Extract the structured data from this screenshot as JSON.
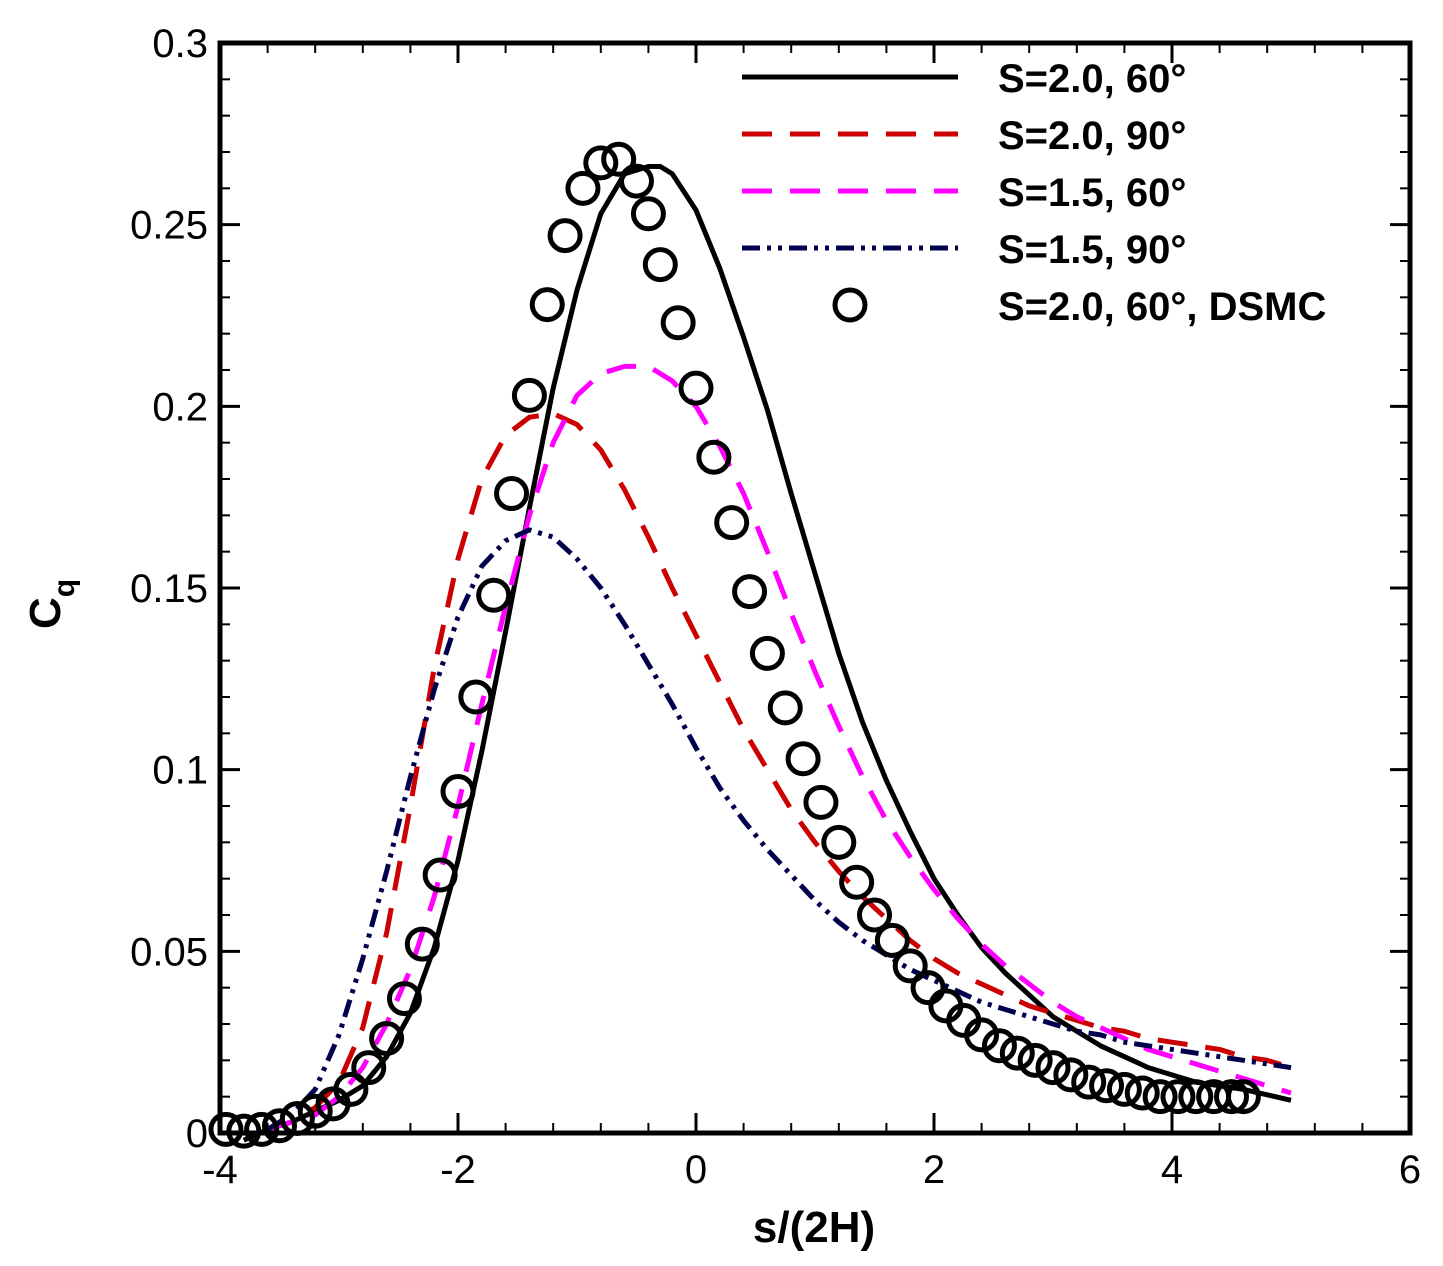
{
  "chart_data": {
    "type": "line",
    "xlabel": "s/(2H)",
    "ylabel": "C",
    "ylabel_sub": "q",
    "xlim": [
      -4,
      6
    ],
    "ylim": [
      0,
      0.3
    ],
    "xticks": [
      -4,
      -2,
      0,
      2,
      4,
      6
    ],
    "yticks": [
      0,
      0.05,
      0.1,
      0.15,
      0.2,
      0.25,
      0.3
    ],
    "xtick_labels": [
      "-4",
      "-2",
      "0",
      "2",
      "4",
      "6"
    ],
    "ytick_labels": [
      "0",
      "0.05",
      "0.1",
      "0.15",
      "0.2",
      "0.25",
      "0.3"
    ],
    "legend_position": "top-right",
    "series": [
      {
        "name": "S=2.0, 60°",
        "style": "solid",
        "color": "#000000",
        "x": [
          -3.8,
          -3.6,
          -3.4,
          -3.2,
          -3.0,
          -2.8,
          -2.6,
          -2.4,
          -2.2,
          -2.0,
          -1.8,
          -1.6,
          -1.4,
          -1.2,
          -1.0,
          -0.8,
          -0.6,
          -0.4,
          -0.3,
          -0.2,
          0.0,
          0.2,
          0.4,
          0.6,
          0.8,
          1.0,
          1.2,
          1.4,
          1.6,
          1.8,
          2.0,
          2.2,
          2.4,
          2.6,
          2.8,
          3.0,
          3.2,
          3.4,
          3.6,
          3.8,
          4.0,
          4.2,
          4.4,
          4.6,
          4.8,
          5.0
        ],
        "y": [
          -0.002,
          0.001,
          0.003,
          0.006,
          0.009,
          0.013,
          0.021,
          0.033,
          0.051,
          0.075,
          0.105,
          0.138,
          0.172,
          0.205,
          0.232,
          0.253,
          0.264,
          0.266,
          0.266,
          0.264,
          0.254,
          0.238,
          0.219,
          0.199,
          0.176,
          0.154,
          0.132,
          0.113,
          0.097,
          0.083,
          0.07,
          0.06,
          0.051,
          0.044,
          0.038,
          0.032,
          0.028,
          0.024,
          0.021,
          0.018,
          0.016,
          0.014,
          0.013,
          0.012,
          0.0105,
          0.009
        ]
      },
      {
        "name": "S=2.0, 90°",
        "style": "dashed",
        "color": "#cc0000",
        "x": [
          -3.6,
          -3.4,
          -3.2,
          -3.0,
          -2.8,
          -2.6,
          -2.4,
          -2.2,
          -2.0,
          -1.8,
          -1.6,
          -1.4,
          -1.2,
          -1.0,
          -0.8,
          -0.6,
          -0.4,
          -0.2,
          0.0,
          0.2,
          0.4,
          0.6,
          0.8,
          1.0,
          1.2,
          1.4,
          1.6,
          1.8,
          2.0,
          2.2,
          2.4,
          2.6,
          2.8,
          3.0,
          3.2,
          3.4,
          3.6,
          3.8,
          4.0,
          4.2,
          4.4,
          4.6,
          4.8,
          5.0
        ],
        "y": [
          0.001,
          0.003,
          0.007,
          0.014,
          0.029,
          0.055,
          0.09,
          0.128,
          0.158,
          0.18,
          0.192,
          0.197,
          0.198,
          0.195,
          0.188,
          0.177,
          0.164,
          0.15,
          0.137,
          0.124,
          0.111,
          0.1,
          0.089,
          0.08,
          0.072,
          0.065,
          0.059,
          0.053,
          0.048,
          0.044,
          0.041,
          0.038,
          0.035,
          0.033,
          0.031,
          0.029,
          0.028,
          0.026,
          0.025,
          0.024,
          0.023,
          0.021,
          0.02,
          0.018
        ]
      },
      {
        "name": "S=1.5, 60°",
        "style": "dashed",
        "color": "#ff00ff",
        "x": [
          -3.6,
          -3.4,
          -3.2,
          -3.0,
          -2.8,
          -2.6,
          -2.4,
          -2.2,
          -2.0,
          -1.8,
          -1.6,
          -1.4,
          -1.2,
          -1.0,
          -0.8,
          -0.6,
          -0.4,
          -0.2,
          0.0,
          0.2,
          0.4,
          0.6,
          0.8,
          1.0,
          1.2,
          1.4,
          1.6,
          1.8,
          2.0,
          2.2,
          2.4,
          2.6,
          2.8,
          3.0,
          3.2,
          3.4,
          3.6,
          3.8,
          4.0,
          4.2,
          4.4,
          4.6,
          4.8,
          5.0
        ],
        "y": [
          0.001,
          0.003,
          0.005,
          0.01,
          0.018,
          0.03,
          0.045,
          0.065,
          0.09,
          0.118,
          0.145,
          0.17,
          0.19,
          0.203,
          0.209,
          0.211,
          0.211,
          0.207,
          0.2,
          0.189,
          0.176,
          0.16,
          0.143,
          0.127,
          0.112,
          0.098,
          0.086,
          0.076,
          0.067,
          0.059,
          0.052,
          0.046,
          0.041,
          0.036,
          0.032,
          0.029,
          0.026,
          0.023,
          0.021,
          0.019,
          0.017,
          0.015,
          0.013,
          0.011
        ]
      },
      {
        "name": "S=1.5, 90°",
        "style": "dash-dot-dot",
        "color": "#00004d",
        "x": [
          -3.6,
          -3.4,
          -3.2,
          -3.0,
          -2.8,
          -2.6,
          -2.4,
          -2.2,
          -2.0,
          -1.8,
          -1.6,
          -1.4,
          -1.2,
          -1.0,
          -0.8,
          -0.6,
          -0.4,
          -0.2,
          0.0,
          0.2,
          0.4,
          0.6,
          0.8,
          1.0,
          1.2,
          1.4,
          1.6,
          1.8,
          2.0,
          2.2,
          2.4,
          2.6,
          2.8,
          3.0,
          3.2,
          3.4,
          3.6,
          3.8,
          4.0,
          4.2,
          4.4,
          4.6,
          4.8,
          5.0
        ],
        "y": [
          0.001,
          0.005,
          0.012,
          0.027,
          0.048,
          0.072,
          0.098,
          0.122,
          0.142,
          0.156,
          0.163,
          0.166,
          0.164,
          0.158,
          0.15,
          0.14,
          0.129,
          0.118,
          0.106,
          0.095,
          0.086,
          0.078,
          0.071,
          0.064,
          0.058,
          0.053,
          0.049,
          0.045,
          0.042,
          0.039,
          0.036,
          0.034,
          0.032,
          0.03,
          0.028,
          0.027,
          0.025,
          0.024,
          0.023,
          0.022,
          0.021,
          0.02,
          0.019,
          0.018
        ]
      },
      {
        "name": "S=2.0, 60°, DSMC",
        "style": "markers",
        "marker": "circle",
        "color": "#000000",
        "x": [
          -3.95,
          -3.8,
          -3.65,
          -3.5,
          -3.35,
          -3.2,
          -3.05,
          -2.9,
          -2.75,
          -2.6,
          -2.45,
          -2.3,
          -2.15,
          -2.0,
          -1.85,
          -1.7,
          -1.55,
          -1.4,
          -1.25,
          -1.1,
          -0.95,
          -0.8,
          -0.65,
          -0.5,
          -0.4,
          -0.3,
          -0.15,
          0.0,
          0.15,
          0.3,
          0.45,
          0.6,
          0.75,
          0.9,
          1.05,
          1.2,
          1.35,
          1.5,
          1.65,
          1.8,
          1.95,
          2.1,
          2.25,
          2.4,
          2.55,
          2.7,
          2.85,
          3.0,
          3.15,
          3.3,
          3.45,
          3.6,
          3.75,
          3.9,
          4.05,
          4.2,
          4.35,
          4.5,
          4.6
        ],
        "y": [
          0.001,
          0.0005,
          0.001,
          0.002,
          0.004,
          0.006,
          0.008,
          0.012,
          0.018,
          0.026,
          0.037,
          0.052,
          0.071,
          0.094,
          0.12,
          0.148,
          0.176,
          0.203,
          0.228,
          0.247,
          0.26,
          0.267,
          0.268,
          0.262,
          0.253,
          0.239,
          0.223,
          0.205,
          0.186,
          0.168,
          0.149,
          0.132,
          0.117,
          0.103,
          0.091,
          0.08,
          0.069,
          0.06,
          0.053,
          0.046,
          0.04,
          0.035,
          0.031,
          0.027,
          0.024,
          0.022,
          0.02,
          0.018,
          0.016,
          0.014,
          0.013,
          0.012,
          0.011,
          0.01,
          0.01,
          0.01,
          0.01,
          0.01,
          0.01
        ]
      }
    ]
  }
}
